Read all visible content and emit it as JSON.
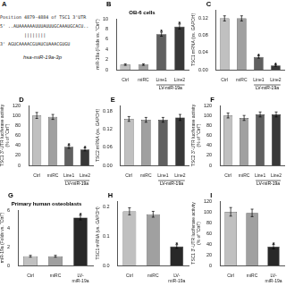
{
  "chart_data": [
    {
      "type": "text",
      "panel_label": "A",
      "annotations": [
        "Position 4879-4884 of TSC1 3'UTR",
        "5' ..AUAAAAAAUUUAUUUGCAAAUGCACU..",
        "         ||||||||",
        "3' AGUCAAAACGUAUCUAAACGUGU",
        "hsa-miR-19a-3p"
      ]
    },
    {
      "type": "bar",
      "panel_label": "B",
      "title": "OB-6 cells",
      "ylabel": "miR-19a (Folds vs. \"Ctrl\")",
      "categories": [
        "Ctrl",
        "miRC",
        "Line1",
        "Line2"
      ],
      "values": [
        1.0,
        1.0,
        7.0,
        8.5
      ],
      "errors": [
        0.15,
        0.15,
        0.4,
        0.5
      ],
      "colors": [
        "#c0c0c0",
        "#a0a0a0",
        "#606060",
        "#383838"
      ],
      "ylim": [
        0,
        10
      ],
      "yticks": [
        0,
        2,
        4,
        6,
        8,
        10
      ],
      "grid": false,
      "annotations": [
        {
          "text": "*",
          "category": "Line1"
        },
        {
          "text": "*",
          "category": "Line2"
        },
        {
          "text": "LV-miR-19a",
          "categories": [
            "Line1",
            "Line2"
          ]
        }
      ]
    },
    {
      "type": "bar",
      "panel_label": "C",
      "ylabel": "TSC1 mRNA (vs. GAPDH)",
      "categories": [
        "Ctrl",
        "miRC",
        "Line1",
        "Line2"
      ],
      "values": [
        0.12,
        0.12,
        0.03,
        0.01
      ],
      "errors": [
        0.006,
        0.006,
        0.003,
        0.002
      ],
      "colors": [
        "#c0c0c0",
        "#a0a0a0",
        "#606060",
        "#383838"
      ],
      "ylim": [
        0,
        0.14
      ],
      "yticks": [
        {
          "value": 0,
          "label": "0.00"
        },
        0.04,
        0.08,
        0.12
      ],
      "grid": false,
      "annotations": [
        {
          "text": "*",
          "category": "Line1"
        },
        {
          "text": "*",
          "category": "Line2"
        },
        {
          "text": "LV-miR-19a",
          "categories": [
            "Line1",
            "Line2"
          ]
        }
      ]
    },
    {
      "type": "bar",
      "panel_label": "D",
      "ylabel": "TSC1 3'-UTR luciferase activity\n(% of \"Ctrl\")",
      "categories": [
        "Ctrl",
        "miRC",
        "Line1",
        "Line2"
      ],
      "values": [
        100,
        97,
        37,
        32
      ],
      "errors": [
        6,
        5,
        3,
        3
      ],
      "colors": [
        "#c0c0c0",
        "#a0a0a0",
        "#606060",
        "#383838"
      ],
      "ylim": [
        0,
        120
      ],
      "yticks": [
        0,
        20,
        40,
        60,
        80,
        100,
        120
      ],
      "grid": false,
      "annotations": [
        {
          "text": "*",
          "category": "Line1"
        },
        {
          "text": "*",
          "category": "Line2"
        },
        {
          "text": "LV-miR-19a",
          "categories": [
            "Line1",
            "Line2"
          ]
        }
      ]
    },
    {
      "type": "bar",
      "panel_label": "E",
      "ylabel": "TSC2 mRNA (vs. GAPDH)",
      "categories": [
        "Ctrl",
        "miRC",
        "Line1",
        "Line2"
      ],
      "values": [
        0.155,
        0.152,
        0.152,
        0.16
      ],
      "errors": [
        0.008,
        0.008,
        0.008,
        0.01
      ],
      "colors": [
        "#c0c0c0",
        "#a0a0a0",
        "#606060",
        "#383838"
      ],
      "ylim": [
        0,
        0.2
      ],
      "yticks": [
        {
          "value": 0,
          "label": "0.00"
        },
        0.06,
        0.12,
        0.18
      ],
      "grid": false,
      "annotations": [
        {
          "text": "LV-miR-19a",
          "categories": [
            "Line1",
            "Line2"
          ]
        }
      ]
    },
    {
      "type": "bar",
      "panel_label": "F",
      "ylabel": "TSC2 3'-UTR luciferase activity\n(% of \"Ctrl\")",
      "categories": [
        "Ctrl",
        "miRC",
        "Line1",
        "Line2"
      ],
      "values": [
        100,
        95,
        102,
        102
      ],
      "errors": [
        5,
        5,
        5,
        5
      ],
      "colors": [
        "#c0c0c0",
        "#a0a0a0",
        "#606060",
        "#383838"
      ],
      "ylim": [
        0,
        120
      ],
      "yticks": [
        0,
        20,
        40,
        60,
        80,
        100,
        120
      ],
      "grid": false,
      "annotations": [
        {
          "text": "LV-miR-19a",
          "categories": [
            "Line1",
            "Line2"
          ]
        }
      ]
    },
    {
      "type": "bar",
      "panel_label": "G",
      "title": "Primary human osteoblasts",
      "ylabel": "miR-19a (Folds vs. \"Ctrl\")",
      "categories": [
        "Ctrl",
        "miRC",
        "LV-\nmiR-19a"
      ],
      "values": [
        1.0,
        1.0,
        5.2
      ],
      "errors": [
        0.1,
        0.1,
        0.25
      ],
      "colors": [
        "#c0c0c0",
        "#a0a0a0",
        "#282828"
      ],
      "ylim": [
        0,
        6
      ],
      "yticks": [
        0,
        2,
        4,
        6
      ],
      "grid": false,
      "annotations": [
        {
          "text": "*",
          "category": "LV-\nmiR-19a"
        }
      ]
    },
    {
      "type": "bar",
      "panel_label": "H",
      "ylabel": "TSC1 mRNA (vs. GAPDH)",
      "categories": [
        "Ctrl",
        "miRC",
        "LV-\nmiR-19a"
      ],
      "values": [
        0.185,
        0.175,
        0.065
      ],
      "errors": [
        0.012,
        0.01,
        0.006
      ],
      "colors": [
        "#c0c0c0",
        "#a0a0a0",
        "#282828"
      ],
      "ylim": [
        0,
        0.22
      ],
      "yticks": [
        {
          "value": 0,
          "label": "0.0"
        },
        0.1,
        0.2
      ],
      "grid": false,
      "annotations": [
        {
          "text": "*",
          "category": "LV-\nmiR-19a"
        }
      ]
    },
    {
      "type": "bar",
      "panel_label": "I",
      "ylabel": "TSC1 3'-UTR luciferase activity\n(% of \"Ctrl\")",
      "categories": [
        "Ctrl",
        "miRC",
        "LV-\nmiR-19a"
      ],
      "values": [
        100,
        98,
        35
      ],
      "errors": [
        8,
        7,
        4
      ],
      "colors": [
        "#c0c0c0",
        "#a0a0a0",
        "#282828"
      ],
      "ylim": [
        0,
        120
      ],
      "yticks": [
        0,
        20,
        40,
        60,
        80,
        100,
        120
      ],
      "grid": false,
      "annotations": [
        {
          "text": "*",
          "category": "LV-\nmiR-19a"
        }
      ]
    }
  ]
}
